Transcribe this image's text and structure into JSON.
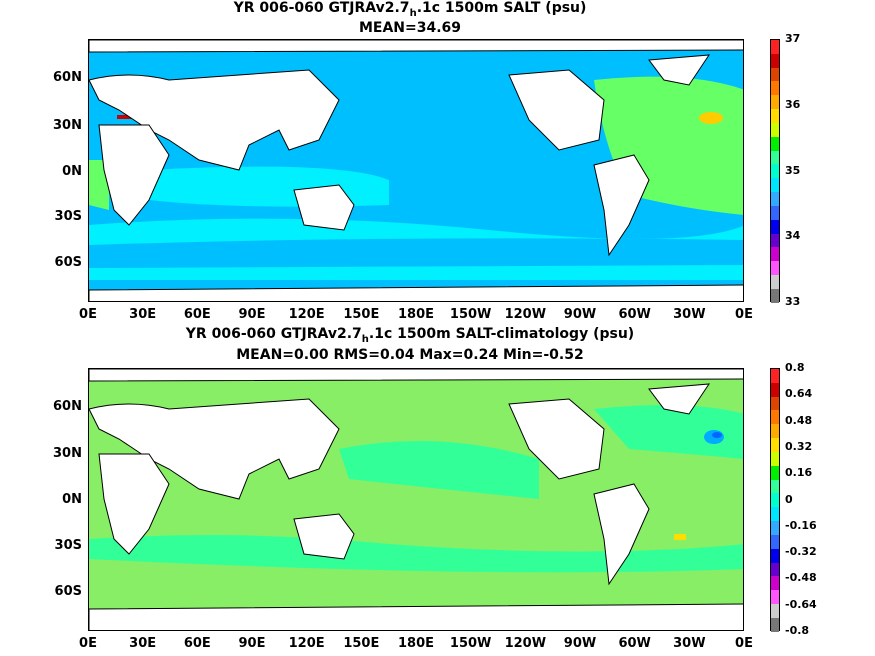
{
  "panels": [
    {
      "title_line1_pre": "YR 006-060 GTJRAv2.7",
      "title_line1_sub": "h",
      "title_line1_post": ".1c 1500m SALT (psu)",
      "title_line2": "MEAN=34.69",
      "colorbar_labels": [
        "37",
        "36",
        "35",
        "34",
        "33"
      ],
      "colors": {
        "ocean_main": "#00bfff",
        "ocean_band": "#00f0ff",
        "ocean_high": "#66ff66",
        "hot_spot": "#ffcc00",
        "hot_core": "#cc0000",
        "land": "#ffffff"
      }
    },
    {
      "title_line1_pre": "YR 006-060 GTJRAv2.7",
      "title_line1_sub": "h",
      "title_line1_post": ".1c 1500m SALT-climatology (psu)",
      "title_line2": "MEAN=0.00   RMS=0.04   Max=0.24   Min=-0.52",
      "colorbar_labels": [
        "0.8",
        "0.64",
        "0.48",
        "0.32",
        "0.16",
        "0",
        "-0.16",
        "-0.32",
        "-0.48",
        "-0.64",
        "-0.8"
      ],
      "colors": {
        "ocean_main": "#88ee66",
        "ocean_band": "#33ff99",
        "ocean_high": "#00ff66",
        "hot_spot": "#00aaff",
        "hot_core": "#0066ff",
        "land": "#ffffff"
      }
    }
  ],
  "axes": {
    "x_ticks": [
      "0E",
      "30E",
      "60E",
      "90E",
      "120E",
      "150E",
      "180E",
      "150W",
      "120W",
      "90W",
      "60W",
      "30W",
      "0E"
    ],
    "y_ticks": [
      "60N",
      "30N",
      "0N",
      "30S",
      "60S"
    ]
  },
  "colorbar": {
    "colors": [
      "#ff2222",
      "#cc0000",
      "#dd4400",
      "#ff7700",
      "#ffaa00",
      "#ffdd00",
      "#ccff00",
      "#00ee00",
      "#33ff99",
      "#00ffcc",
      "#00e5ff",
      "#33aaff",
      "#3366ff",
      "#0000ee",
      "#6600cc",
      "#cc00cc",
      "#ff55ff",
      "#cccccc",
      "#777777"
    ]
  },
  "chart_data": [
    {
      "type": "heatmap",
      "title": "YR 006-060 GTJRAv2.7h.1c 1500m SALT (psu)",
      "subtitle": "MEAN=34.69",
      "x_range": [
        "0E",
        "0E"
      ],
      "y_range": [
        "80S",
        "85N"
      ],
      "colorbar_range": [
        33,
        37
      ],
      "mean": 34.69
    },
    {
      "type": "heatmap",
      "title": "YR 006-060 GTJRAv2.7h.1c 1500m SALT-climatology (psu)",
      "subtitle": "MEAN=0.00 RMS=0.04 Max=0.24 Min=-0.52",
      "x_range": [
        "0E",
        "0E"
      ],
      "y_range": [
        "80S",
        "85N"
      ],
      "colorbar_range": [
        -0.8,
        0.8
      ],
      "mean": 0.0,
      "rms": 0.04,
      "max": 0.24,
      "min": -0.52
    }
  ]
}
